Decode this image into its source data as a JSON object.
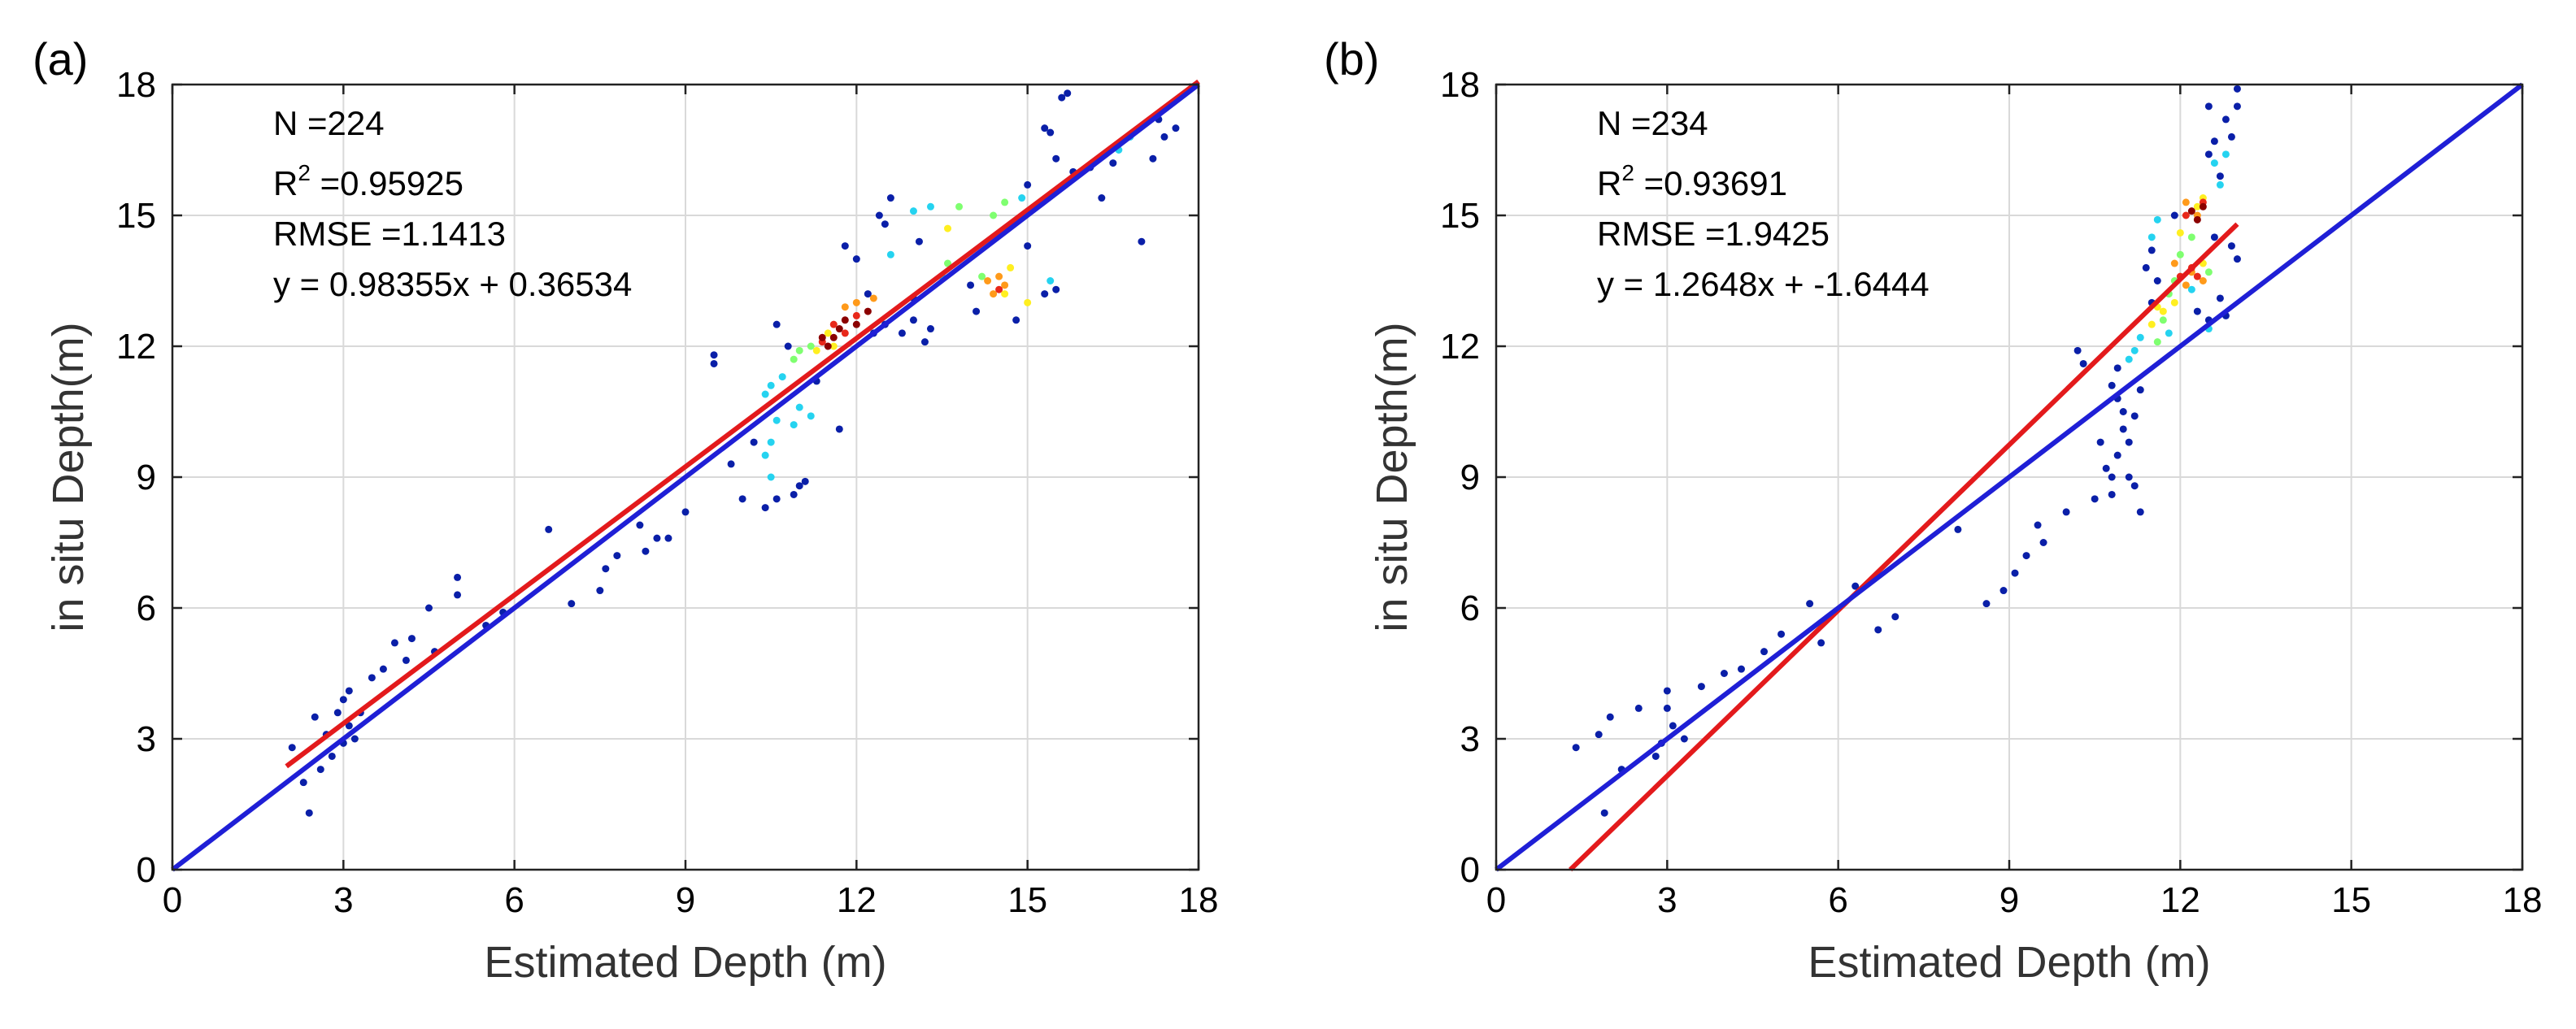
{
  "chart_data": [
    {
      "type": "scatter",
      "panel_label": "(a)",
      "xlabel": "Estimated Depth (m)",
      "ylabel": "in situ Depth(m)",
      "xlim": [
        0,
        18
      ],
      "ylim": [
        0,
        18
      ],
      "xticks": [
        "0",
        "3",
        "6",
        "9",
        "12",
        "15",
        "18"
      ],
      "yticks": [
        "0",
        "3",
        "6",
        "9",
        "12",
        "15",
        "18"
      ],
      "grid": true,
      "annotation": {
        "n": "N =224",
        "r2_prefix": "R",
        "r2_sup": "2",
        "r2_value": " =0.95925",
        "rmse": "RMSE =1.1413",
        "equation": "y = 0.98355x + 0.36534"
      },
      "lines": [
        {
          "color": "#e31a1c",
          "x": [
            2.0,
            18.0
          ],
          "y": [
            2.37,
            18.07
          ]
        },
        {
          "color": "#1f1fd6",
          "x": [
            0.0,
            18.0
          ],
          "y": [
            0.0,
            18.0
          ]
        }
      ],
      "points": [
        [
          2.1,
          2.8
        ],
        [
          2.3,
          2.0
        ],
        [
          2.4,
          1.3
        ],
        [
          2.5,
          3.5
        ],
        [
          2.6,
          2.3
        ],
        [
          2.7,
          3.1
        ],
        [
          2.8,
          2.6
        ],
        [
          2.9,
          3.6
        ],
        [
          3.0,
          3.9
        ],
        [
          3.0,
          2.9
        ],
        [
          3.1,
          4.1
        ],
        [
          3.1,
          3.3
        ],
        [
          3.2,
          3.0
        ],
        [
          3.3,
          3.6
        ],
        [
          3.5,
          4.4
        ],
        [
          3.7,
          4.6
        ],
        [
          3.9,
          5.2
        ],
        [
          4.1,
          4.8
        ],
        [
          4.2,
          5.3
        ],
        [
          4.5,
          6.0
        ],
        [
          4.6,
          5.0
        ],
        [
          5.0,
          6.7
        ],
        [
          5.0,
          6.3
        ],
        [
          5.5,
          5.6
        ],
        [
          5.8,
          5.9
        ],
        [
          6.6,
          7.8
        ],
        [
          7.0,
          6.1
        ],
        [
          7.5,
          6.4
        ],
        [
          7.6,
          6.9
        ],
        [
          7.8,
          7.2
        ],
        [
          8.2,
          7.9
        ],
        [
          8.3,
          7.3
        ],
        [
          8.5,
          7.6
        ],
        [
          8.7,
          7.6
        ],
        [
          9.0,
          8.2
        ],
        [
          9.5,
          11.8
        ],
        [
          9.5,
          11.6
        ],
        [
          9.8,
          9.3
        ],
        [
          10.0,
          8.5
        ],
        [
          10.2,
          9.8
        ],
        [
          10.4,
          8.3
        ],
        [
          10.6,
          8.5
        ],
        [
          10.9,
          8.6
        ],
        [
          11.0,
          8.8
        ],
        [
          11.1,
          8.9
        ],
        [
          10.6,
          12.5
        ],
        [
          10.8,
          12.0
        ],
        [
          11.3,
          11.2
        ],
        [
          11.7,
          10.1
        ],
        [
          11.8,
          14.3
        ],
        [
          12.0,
          14.0
        ],
        [
          12.2,
          13.2
        ],
        [
          12.3,
          12.3
        ],
        [
          12.5,
          12.5
        ],
        [
          12.4,
          15.0
        ],
        [
          12.5,
          14.8
        ],
        [
          12.6,
          15.4
        ],
        [
          12.8,
          12.3
        ],
        [
          13.0,
          12.6
        ],
        [
          13.1,
          14.4
        ],
        [
          13.2,
          12.1
        ],
        [
          13.3,
          12.4
        ],
        [
          13.0,
          13.1
        ],
        [
          14.1,
          12.8
        ],
        [
          14.8,
          12.6
        ],
        [
          15.0,
          14.3
        ],
        [
          15.0,
          15.7
        ],
        [
          15.3,
          17.0
        ],
        [
          15.4,
          16.9
        ],
        [
          15.5,
          16.3
        ],
        [
          15.6,
          17.7
        ],
        [
          15.7,
          17.8
        ],
        [
          15.8,
          16.0
        ],
        [
          16.1,
          16.1
        ],
        [
          16.3,
          15.4
        ],
        [
          16.5,
          16.2
        ],
        [
          17.0,
          14.4
        ],
        [
          17.2,
          16.3
        ],
        [
          17.3,
          17.2
        ],
        [
          17.4,
          16.8
        ],
        [
          17.6,
          17.0
        ],
        [
          15.5,
          13.3
        ],
        [
          15.3,
          13.2
        ],
        [
          14.0,
          13.4
        ],
        [
          10.4,
          10.9,
          "#25d3f0"
        ],
        [
          10.5,
          11.1,
          "#25d3f0"
        ],
        [
          10.6,
          10.3,
          "#25d3f0"
        ],
        [
          10.5,
          9.8,
          "#25d3f0"
        ],
        [
          10.4,
          9.5,
          "#25d3f0"
        ],
        [
          10.5,
          9.0,
          "#25d3f0"
        ],
        [
          11.0,
          10.6,
          "#25d3f0"
        ],
        [
          11.2,
          10.4,
          "#25d3f0"
        ],
        [
          10.7,
          11.3,
          "#25d3f0"
        ],
        [
          10.9,
          10.2,
          "#25d3f0"
        ],
        [
          12.6,
          14.1,
          "#25d3f0"
        ],
        [
          13.0,
          15.1,
          "#25d3f0"
        ],
        [
          13.3,
          15.2,
          "#25d3f0"
        ],
        [
          14.9,
          15.4,
          "#25d3f0"
        ],
        [
          16.6,
          16.5,
          "#25d3f0"
        ],
        [
          16.8,
          16.8,
          "#25d3f0"
        ],
        [
          15.4,
          13.5,
          "#25d3f0"
        ],
        [
          13.5,
          13.6,
          "#25d3f0"
        ],
        [
          10.9,
          11.7,
          "#7fff70"
        ],
        [
          11.0,
          11.9,
          "#7fff70"
        ],
        [
          13.6,
          13.9,
          "#7fff70"
        ],
        [
          13.8,
          15.2,
          "#7fff70"
        ],
        [
          14.4,
          15.0,
          "#7fff70"
        ],
        [
          14.6,
          15.3,
          "#7fff70"
        ],
        [
          14.2,
          13.6,
          "#7fff70"
        ],
        [
          11.2,
          12.0,
          "#7fff70"
        ],
        [
          11.3,
          11.9,
          "#ffef20"
        ],
        [
          13.6,
          14.7,
          "#ffef20"
        ],
        [
          14.7,
          13.8,
          "#ffef20"
        ],
        [
          15.0,
          13.0,
          "#ffef20"
        ],
        [
          14.6,
          13.2,
          "#ffef20"
        ],
        [
          11.5,
          12.3,
          "#ffef20"
        ],
        [
          11.6,
          12.0,
          "#ffef20"
        ],
        [
          11.8,
          12.9,
          "#ff9a1a"
        ],
        [
          12.0,
          13.0,
          "#ff9a1a"
        ],
        [
          14.3,
          13.5,
          "#ff9a1a"
        ],
        [
          14.4,
          13.2,
          "#ff9a1a"
        ],
        [
          14.5,
          13.6,
          "#ff9a1a"
        ],
        [
          14.6,
          13.4,
          "#ff9a1a"
        ],
        [
          12.3,
          13.1,
          "#ff9a1a"
        ],
        [
          11.4,
          12.1,
          "#e8281a"
        ],
        [
          11.6,
          12.5,
          "#e8281a"
        ],
        [
          11.8,
          12.3,
          "#e8281a"
        ],
        [
          12.0,
          12.7,
          "#e8281a"
        ],
        [
          14.5,
          13.3,
          "#e8281a"
        ],
        [
          11.4,
          12.2,
          "#8b0000"
        ],
        [
          11.5,
          12.0,
          "#8b0000"
        ],
        [
          11.7,
          12.4,
          "#8b0000"
        ],
        [
          11.8,
          12.6,
          "#8b0000"
        ],
        [
          12.0,
          12.5,
          "#8b0000"
        ],
        [
          12.2,
          12.8,
          "#8b0000"
        ],
        [
          11.6,
          12.2,
          "#8b0000"
        ]
      ]
    },
    {
      "type": "scatter",
      "panel_label": "(b)",
      "xlabel": "Estimated Depth (m)",
      "ylabel": "in situ Depth(m)",
      "xlim": [
        0,
        18
      ],
      "ylim": [
        0,
        18
      ],
      "xticks": [
        "0",
        "3",
        "6",
        "9",
        "12",
        "15",
        "18"
      ],
      "yticks": [
        "0",
        "3",
        "6",
        "9",
        "12",
        "15",
        "18"
      ],
      "grid": true,
      "annotation": {
        "n": "N =234",
        "r2_prefix": "R",
        "r2_sup": "2",
        "r2_value": " =0.93691",
        "rmse": "RMSE =1.9425",
        "equation": "y = 1.2648x + -1.6444"
      },
      "lines": [
        {
          "color": "#e31a1c",
          "x": [
            1.3,
            13.0
          ],
          "y": [
            0.0,
            14.8
          ]
        },
        {
          "color": "#1f1fd6",
          "x": [
            0.0,
            18.0
          ],
          "y": [
            0.0,
            18.0
          ]
        }
      ],
      "points": [
        [
          1.4,
          2.8
        ],
        [
          1.8,
          3.1
        ],
        [
          2.0,
          3.5
        ],
        [
          1.9,
          1.3
        ],
        [
          2.2,
          2.3
        ],
        [
          2.5,
          3.7
        ],
        [
          2.8,
          2.6
        ],
        [
          2.9,
          2.9
        ],
        [
          3.0,
          3.7
        ],
        [
          3.0,
          4.1
        ],
        [
          3.1,
          3.3
        ],
        [
          3.3,
          3.0
        ],
        [
          3.6,
          4.2
        ],
        [
          4.0,
          4.5
        ],
        [
          4.3,
          4.6
        ],
        [
          4.7,
          5.0
        ],
        [
          5.0,
          5.4
        ],
        [
          5.5,
          6.1
        ],
        [
          5.7,
          5.2
        ],
        [
          6.3,
          6.5
        ],
        [
          6.7,
          5.5
        ],
        [
          7.0,
          5.8
        ],
        [
          8.1,
          7.8
        ],
        [
          8.6,
          6.1
        ],
        [
          8.9,
          6.4
        ],
        [
          9.1,
          6.8
        ],
        [
          9.3,
          7.2
        ],
        [
          9.5,
          7.9
        ],
        [
          9.6,
          7.5
        ],
        [
          10.0,
          8.2
        ],
        [
          10.2,
          11.9
        ],
        [
          10.3,
          11.6
        ],
        [
          10.5,
          8.5
        ],
        [
          10.6,
          9.8
        ],
        [
          10.7,
          9.2
        ],
        [
          10.8,
          9.0
        ],
        [
          10.8,
          8.6
        ],
        [
          10.9,
          9.5
        ],
        [
          10.9,
          10.8
        ],
        [
          10.8,
          11.1
        ],
        [
          11.0,
          10.5
        ],
        [
          11.0,
          10.1
        ],
        [
          11.1,
          9.8
        ],
        [
          11.1,
          9.0
        ],
        [
          11.2,
          8.8
        ],
        [
          11.3,
          8.2
        ],
        [
          11.2,
          10.4
        ],
        [
          11.3,
          11.0
        ],
        [
          10.9,
          11.5
        ],
        [
          11.5,
          13.0
        ],
        [
          11.5,
          14.2
        ],
        [
          11.6,
          13.5
        ],
        [
          11.4,
          13.8
        ],
        [
          12.3,
          12.8
        ],
        [
          12.5,
          12.6
        ],
        [
          12.8,
          12.7
        ],
        [
          12.6,
          14.5
        ],
        [
          12.7,
          15.9
        ],
        [
          12.5,
          17.5
        ],
        [
          12.8,
          17.2
        ],
        [
          13.0,
          17.9
        ],
        [
          13.0,
          17.5
        ],
        [
          12.9,
          16.8
        ],
        [
          13.0,
          14.0
        ],
        [
          12.9,
          14.3
        ],
        [
          12.6,
          16.7
        ],
        [
          12.5,
          16.4
        ],
        [
          12.7,
          13.1
        ],
        [
          11.9,
          15.0
        ],
        [
          11.5,
          14.5,
          "#25d3f0"
        ],
        [
          11.6,
          14.9,
          "#25d3f0"
        ],
        [
          11.1,
          11.7,
          "#25d3f0"
        ],
        [
          11.3,
          12.2,
          "#25d3f0"
        ],
        [
          11.2,
          11.9,
          "#25d3f0"
        ],
        [
          12.6,
          16.2,
          "#25d3f0"
        ],
        [
          12.8,
          16.4,
          "#25d3f0"
        ],
        [
          12.7,
          15.7,
          "#25d3f0"
        ],
        [
          12.2,
          13.3,
          "#25d3f0"
        ],
        [
          11.8,
          12.3,
          "#25d3f0"
        ],
        [
          12.5,
          12.4,
          "#25d3f0"
        ],
        [
          11.6,
          12.1,
          "#7fff70"
        ],
        [
          11.8,
          13.2,
          "#7fff70"
        ],
        [
          11.9,
          13.5,
          "#7fff70"
        ],
        [
          12.0,
          14.1,
          "#7fff70"
        ],
        [
          12.2,
          14.5,
          "#7fff70"
        ],
        [
          11.7,
          12.6,
          "#7fff70"
        ],
        [
          12.5,
          13.7,
          "#7fff70"
        ],
        [
          11.5,
          12.5,
          "#ffef20"
        ],
        [
          11.7,
          12.8,
          "#ffef20"
        ],
        [
          11.9,
          13.0,
          "#ffef20"
        ],
        [
          12.0,
          14.6,
          "#ffef20"
        ],
        [
          12.4,
          13.9,
          "#ffef20"
        ],
        [
          12.3,
          15.2,
          "#ffef20"
        ],
        [
          12.4,
          15.4,
          "#ffef20"
        ],
        [
          11.6,
          12.9,
          "#ffef20"
        ],
        [
          11.9,
          13.9,
          "#ff9a1a"
        ],
        [
          12.1,
          13.4,
          "#ff9a1a"
        ],
        [
          12.2,
          13.7,
          "#ff9a1a"
        ],
        [
          12.3,
          15.0,
          "#ff9a1a"
        ],
        [
          12.1,
          15.3,
          "#ff9a1a"
        ],
        [
          12.4,
          13.5,
          "#ff9a1a"
        ],
        [
          12.0,
          13.6,
          "#e8281a"
        ],
        [
          12.1,
          15.0,
          "#e8281a"
        ],
        [
          12.3,
          13.6,
          "#e8281a"
        ],
        [
          12.4,
          15.3,
          "#e8281a"
        ],
        [
          12.2,
          13.8,
          "#e8281a"
        ],
        [
          12.2,
          15.1,
          "#8b0000"
        ],
        [
          12.3,
          14.9,
          "#8b0000"
        ],
        [
          12.4,
          15.2,
          "#8b0000"
        ]
      ]
    }
  ]
}
